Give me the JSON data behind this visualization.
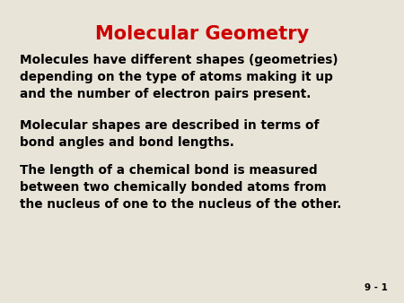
{
  "title": "Molecular Geometry",
  "title_color": "#CC0000",
  "title_fontsize": 15,
  "background_color": "#E8E4D8",
  "text_color": "#000000",
  "body_fontsize": 9.8,
  "slide_label": "9 - 1",
  "paragraphs": [
    "Molecules have different shapes (geometries)\ndepending on the type of atoms making it up\nand the number of electron pairs present.",
    "Molecular shapes are described in terms of\nbond angles and bond lengths.",
    "The length of a chemical bond is measured\nbetween two chemically bonded atoms from\nthe nucleus of one to the nucleus of the other."
  ]
}
